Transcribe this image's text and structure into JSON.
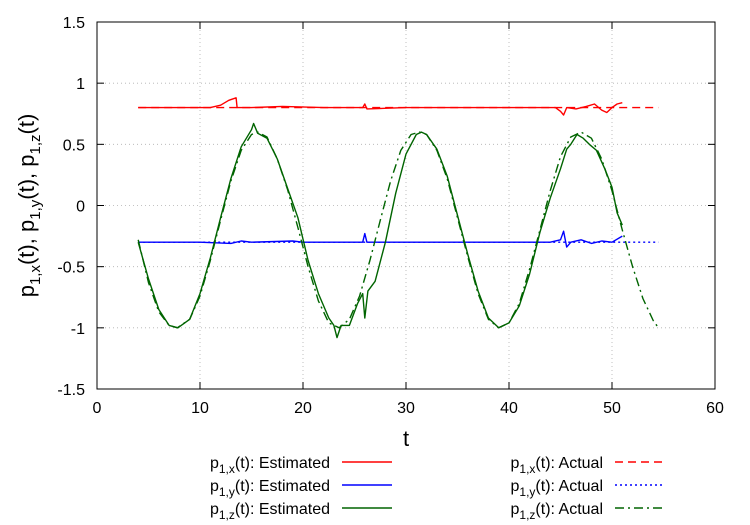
{
  "chart_data": {
    "type": "line",
    "title": "",
    "xlabel": "t",
    "ylabel": "p1,x(t), p1,y(t), p1,z(t)",
    "xlim": [
      0,
      60
    ],
    "ylim": [
      -1.5,
      1.5
    ],
    "xticks": [
      "0",
      "10",
      "20",
      "30",
      "40",
      "50",
      "60"
    ],
    "yticks": [
      "1.5",
      "1",
      "0.5",
      "0",
      "-0.5",
      "-1",
      "-1.5"
    ],
    "grid": true,
    "legend_position": "bottom, below plot",
    "series": [
      {
        "name": "p1,x(t): Estimated",
        "color": "#ff0000",
        "dash": "solid",
        "points": [
          [
            4,
            0.8
          ],
          [
            8,
            0.8
          ],
          [
            11,
            0.8
          ],
          [
            12,
            0.82
          ],
          [
            12.8,
            0.86
          ],
          [
            13.5,
            0.88
          ],
          [
            13.6,
            0.8
          ],
          [
            15,
            0.8
          ],
          [
            18,
            0.81
          ],
          [
            22,
            0.8
          ],
          [
            25.8,
            0.8
          ],
          [
            26,
            0.83
          ],
          [
            26.2,
            0.79
          ],
          [
            30,
            0.8
          ],
          [
            40,
            0.8
          ],
          [
            44.5,
            0.8
          ],
          [
            45,
            0.77
          ],
          [
            45.3,
            0.74
          ],
          [
            45.6,
            0.8
          ],
          [
            46.5,
            0.79
          ],
          [
            47.5,
            0.81
          ],
          [
            48.3,
            0.83
          ],
          [
            49,
            0.78
          ],
          [
            49.5,
            0.76
          ],
          [
            50,
            0.8
          ],
          [
            50.5,
            0.83
          ],
          [
            51,
            0.84
          ]
        ]
      },
      {
        "name": "p1,x(t): Actual",
        "color": "#ff0000",
        "dash": "dashed",
        "points": [
          [
            4,
            0.8
          ],
          [
            54.5,
            0.8
          ]
        ]
      },
      {
        "name": "p1,y(t): Estimated",
        "color": "#0000ff",
        "dash": "solid",
        "points": [
          [
            4,
            -0.3
          ],
          [
            10,
            -0.3
          ],
          [
            13,
            -0.31
          ],
          [
            14,
            -0.29
          ],
          [
            15,
            -0.3
          ],
          [
            19,
            -0.29
          ],
          [
            20,
            -0.3
          ],
          [
            24,
            -0.3
          ],
          [
            25.8,
            -0.3
          ],
          [
            26,
            -0.23
          ],
          [
            26.2,
            -0.3
          ],
          [
            30,
            -0.3
          ],
          [
            40,
            -0.3
          ],
          [
            44,
            -0.3
          ],
          [
            45,
            -0.28
          ],
          [
            45.3,
            -0.21
          ],
          [
            45.6,
            -0.34
          ],
          [
            46,
            -0.3
          ],
          [
            47,
            -0.28
          ],
          [
            48,
            -0.31
          ],
          [
            49,
            -0.29
          ],
          [
            50,
            -0.3
          ],
          [
            51,
            -0.25
          ]
        ]
      },
      {
        "name": "p1,y(t): Actual",
        "color": "#0000ff",
        "dash": "dotted",
        "points": [
          [
            4,
            -0.3
          ],
          [
            54.5,
            -0.3
          ]
        ]
      },
      {
        "name": "p1,z(t): Estimated",
        "color": "#006400",
        "dash": "solid",
        "points": [
          [
            4,
            -0.3
          ],
          [
            5,
            -0.6
          ],
          [
            6,
            -0.85
          ],
          [
            7,
            -0.98
          ],
          [
            7.85,
            -1.0
          ],
          [
            9,
            -0.93
          ],
          [
            10,
            -0.72
          ],
          [
            11,
            -0.43
          ],
          [
            12,
            -0.1
          ],
          [
            13,
            0.22
          ],
          [
            14,
            0.48
          ],
          [
            15,
            0.62
          ],
          [
            15.2,
            0.67
          ],
          [
            15.6,
            0.59
          ],
          [
            16.5,
            0.55
          ],
          [
            17.5,
            0.38
          ],
          [
            18.5,
            0.14
          ],
          [
            19.5,
            -0.1
          ],
          [
            20.5,
            -0.45
          ],
          [
            21.5,
            -0.72
          ],
          [
            22.5,
            -0.92
          ],
          [
            23,
            -0.98
          ],
          [
            23.3,
            -1.08
          ],
          [
            23.7,
            -0.98
          ],
          [
            24.5,
            -0.98
          ],
          [
            25.3,
            -0.8
          ],
          [
            25.8,
            -0.72
          ],
          [
            26,
            -0.92
          ],
          [
            26.3,
            -0.7
          ],
          [
            27,
            -0.62
          ],
          [
            28,
            -0.3
          ],
          [
            29,
            0.1
          ],
          [
            30,
            0.42
          ],
          [
            31,
            0.58
          ],
          [
            31.5,
            0.6
          ],
          [
            32,
            0.58
          ],
          [
            33,
            0.46
          ],
          [
            34,
            0.24
          ],
          [
            35,
            -0.08
          ],
          [
            36,
            -0.4
          ],
          [
            37,
            -0.7
          ],
          [
            38,
            -0.92
          ],
          [
            39,
            -1.0
          ],
          [
            40,
            -0.96
          ],
          [
            41,
            -0.82
          ],
          [
            42,
            -0.56
          ],
          [
            43,
            -0.22
          ],
          [
            44,
            0.06
          ],
          [
            45,
            0.3
          ],
          [
            45.6,
            0.46
          ],
          [
            46,
            0.5
          ],
          [
            46.6,
            0.58
          ],
          [
            47.2,
            0.55
          ],
          [
            47.8,
            0.5
          ],
          [
            48.5,
            0.45
          ],
          [
            49.3,
            0.3
          ],
          [
            50,
            0.15
          ],
          [
            50.5,
            -0.06
          ],
          [
            51,
            -0.16
          ]
        ]
      },
      {
        "name": "p1,z(t): Actual",
        "color": "#006400",
        "dash": "dashdot",
        "points": [
          [
            4,
            -0.28
          ],
          [
            5,
            -0.63
          ],
          [
            6,
            -0.87
          ],
          [
            7,
            -0.98
          ],
          [
            7.8,
            -1.0
          ],
          [
            9,
            -0.93
          ],
          [
            10,
            -0.74
          ],
          [
            11,
            -0.45
          ],
          [
            12,
            -0.12
          ],
          [
            13,
            0.2
          ],
          [
            14,
            0.45
          ],
          [
            15,
            0.58
          ],
          [
            15.6,
            0.6
          ],
          [
            16.5,
            0.56
          ],
          [
            17.5,
            0.38
          ],
          [
            18.5,
            0.13
          ],
          [
            19.5,
            -0.18
          ],
          [
            20.5,
            -0.5
          ],
          [
            21.5,
            -0.78
          ],
          [
            22.5,
            -0.96
          ],
          [
            23.5,
            -1.0
          ],
          [
            24.5,
            -0.93
          ],
          [
            25.5,
            -0.74
          ],
          [
            26.5,
            -0.45
          ],
          [
            27.5,
            -0.12
          ],
          [
            28.5,
            0.2
          ],
          [
            29.5,
            0.45
          ],
          [
            30.5,
            0.58
          ],
          [
            31.3,
            0.6
          ],
          [
            32,
            0.58
          ],
          [
            33,
            0.45
          ],
          [
            34,
            0.22
          ],
          [
            35,
            -0.1
          ],
          [
            36,
            -0.42
          ],
          [
            37,
            -0.72
          ],
          [
            38,
            -0.93
          ],
          [
            39,
            -1.0
          ],
          [
            40,
            -0.96
          ],
          [
            41,
            -0.8
          ],
          [
            42,
            -0.52
          ],
          [
            43,
            -0.2
          ],
          [
            44,
            0.12
          ],
          [
            45,
            0.4
          ],
          [
            46,
            0.56
          ],
          [
            47,
            0.6
          ],
          [
            48,
            0.55
          ],
          [
            49,
            0.38
          ],
          [
            50,
            0.12
          ],
          [
            51,
            -0.2
          ],
          [
            52,
            -0.5
          ],
          [
            53,
            -0.76
          ],
          [
            54,
            -0.94
          ],
          [
            54.5,
            -1.0
          ]
        ]
      }
    ]
  },
  "legend": {
    "left": [
      {
        "base": "p",
        "sub": "1,x",
        "rest": "(t): Estimated",
        "series": 0
      },
      {
        "base": "p",
        "sub": "1,y",
        "rest": "(t): Estimated",
        "series": 2
      },
      {
        "base": "p",
        "sub": "1,z",
        "rest": "(t): Estimated",
        "series": 4
      }
    ],
    "right": [
      {
        "base": "p",
        "sub": "1,x",
        "rest": "(t): Actual",
        "series": 1
      },
      {
        "base": "p",
        "sub": "1,y",
        "rest": "(t): Actual",
        "series": 3
      },
      {
        "base": "p",
        "sub": "1,z",
        "rest": "(t): Actual",
        "series": 5
      }
    ]
  },
  "ylabel_parts": [
    {
      "base": "p",
      "sub": "1,x",
      "rest": "(t), "
    },
    {
      "base": "p",
      "sub": "1,y",
      "rest": "(t), "
    },
    {
      "base": "p",
      "sub": "1,z",
      "rest": "(t)"
    }
  ]
}
